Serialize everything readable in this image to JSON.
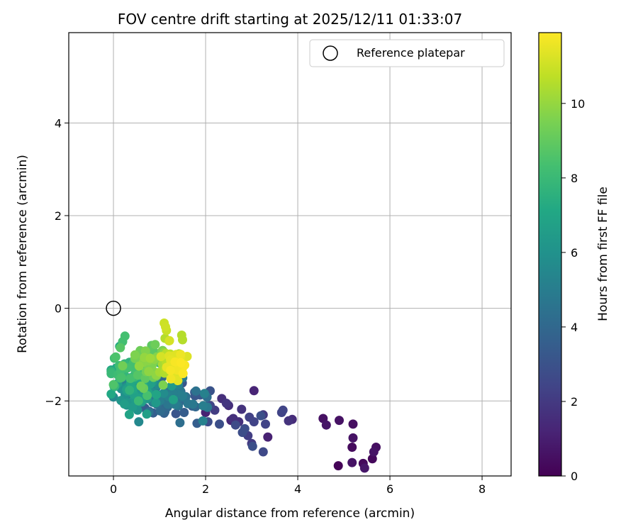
{
  "chart_data": {
    "type": "scatter",
    "title": "FOV centre drift starting at 2025/12/11 01:33:07",
    "xlabel": "Angular distance from reference (arcmin)",
    "ylabel": "Rotation from reference (arcmin)",
    "xlim": [
      -0.97,
      8.63
    ],
    "ylim": [
      -3.62,
      5.95
    ],
    "xticks": [
      0,
      2,
      4,
      6,
      8
    ],
    "xtick_labels": [
      "0",
      "2",
      "4",
      "6",
      "8"
    ],
    "yticks": [
      -2,
      0,
      2,
      4
    ],
    "ytick_labels": [
      "−2",
      "0",
      "2",
      "4"
    ],
    "grid": true,
    "legend": {
      "location": "upper right",
      "label": "Reference platepar"
    },
    "reference_point": {
      "x": 0.0,
      "y": 0.0
    },
    "colorbar": {
      "label": "Hours from first FF file",
      "colormap": "viridis",
      "range": [
        0,
        11.9
      ],
      "ticks": [
        0,
        2,
        4,
        6,
        8,
        10
      ],
      "tick_labels": [
        "0",
        "2",
        "4",
        "6",
        "8",
        "10"
      ]
    },
    "series_count": 1,
    "hours_range": [
      0,
      11.9
    ],
    "point_count": 315
  }
}
